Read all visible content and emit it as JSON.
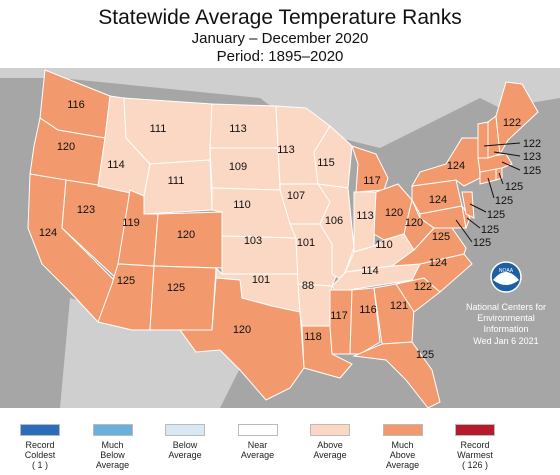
{
  "header": {
    "title": "Statewide Average Temperature Ranks",
    "subtitle_1": "January – December 2020",
    "subtitle_2": "Period: 1895–2020"
  },
  "colors": {
    "background_gray": "#a6a6a6",
    "land_gray": "#cfcfcf",
    "near_average": "#ffffff",
    "above_average": "#fbd8c3",
    "much_above_average": "#f29a6e",
    "record_warmest": "#b41c2c",
    "below_average": "#d8e8f4",
    "much_below_average": "#6ab0dd",
    "record_coldest": "#2a6ebb",
    "border": "#ffffff"
  },
  "ranks": {
    "WA": "116",
    "OR": "120",
    "CA": "124",
    "ID": "114",
    "NV": "123",
    "MT": "111",
    "WY": "111",
    "UT": "119",
    "AZ": "125",
    "CO": "120",
    "NM": "125",
    "ND": "113",
    "SD": "109",
    "NE": "110",
    "KS": "103",
    "OK": "101",
    "TX": "120",
    "MN": "113",
    "IA": "107",
    "MO": "101",
    "AR": "88",
    "LA": "118",
    "WI": "115",
    "IL": "106",
    "MI": "117",
    "IN": "113",
    "OH": "120",
    "KY": "110",
    "TN": "114",
    "MS": "117",
    "AL": "116",
    "GA": "121",
    "FL": "125",
    "SC": "122",
    "NC": "124",
    "VA": "125",
    "WV": "120",
    "PA": "124",
    "NY": "124",
    "ME": "122",
    "VT": "122",
    "NH": "123",
    "MA": "125",
    "RI": "125",
    "CT": "125",
    "NJ": "125",
    "DE": "125",
    "MD": "125"
  },
  "noaa": {
    "logo_text": "NOAA",
    "line1": "National Centers for",
    "line2": "Environmental",
    "line3": "Information",
    "date": "Wed Jan  6 2021"
  },
  "legend": [
    {
      "label": "Record\nColdest\n( 1 )",
      "color": "#2a6ebb"
    },
    {
      "label": "Much\nBelow\nAverage",
      "color": "#6ab0dd"
    },
    {
      "label": "Below\nAverage",
      "color": "#d8e8f4"
    },
    {
      "label": "Near\nAverage",
      "color": "#ffffff"
    },
    {
      "label": "Above\nAverage",
      "color": "#fbd8c3"
    },
    {
      "label": "Much\nAbove\nAverage",
      "color": "#f29a6e"
    },
    {
      "label": "Record\nWarmest\n( 126 )",
      "color": "#b41c2c"
    }
  ]
}
